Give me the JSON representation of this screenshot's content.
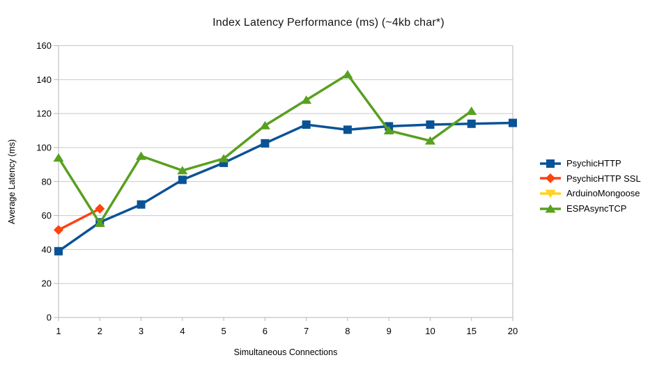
{
  "chart_data": {
    "type": "line",
    "title": "Index Latency Performance (ms) (~4kb char*)",
    "xlabel": "Simultaneous Connections",
    "ylabel": "Average Latency (ms)",
    "categories": [
      "1",
      "2",
      "3",
      "4",
      "5",
      "6",
      "7",
      "8",
      "9",
      "10",
      "15",
      "20"
    ],
    "ylim": [
      0,
      160
    ],
    "yticks": [
      0,
      20,
      40,
      60,
      80,
      100,
      120,
      140,
      160
    ],
    "grid": "horizontal-only",
    "legend_position": "right",
    "series": [
      {
        "name": "PsychicHTTP",
        "color": "#0a5296",
        "marker": "square",
        "values": [
          39,
          56,
          66.5,
          81,
          91,
          102.5,
          113.5,
          110.5,
          112.5,
          113.5,
          114,
          114.5
        ]
      },
      {
        "name": "PsychicHTTP SSL",
        "color": "#ff420e",
        "marker": "diamond",
        "values": [
          51.5,
          64,
          null,
          null,
          null,
          null,
          null,
          null,
          null,
          null,
          null,
          null
        ]
      },
      {
        "name": "ArduinoMongoose",
        "color": "#ffd320",
        "marker": "triangle-down",
        "values": [
          null,
          null,
          null,
          null,
          null,
          null,
          null,
          null,
          null,
          null,
          null,
          null
        ]
      },
      {
        "name": "ESPAsyncTCP",
        "color": "#58a01f",
        "marker": "triangle-up",
        "values": [
          94,
          55.5,
          95,
          86.5,
          93.5,
          113,
          128,
          143,
          110,
          104,
          121.5,
          null
        ]
      }
    ],
    "colors": {
      "grid": "#c9c9c9",
      "axis": "#b6b6b6",
      "text": "#000000",
      "background": "#ffffff"
    }
  }
}
